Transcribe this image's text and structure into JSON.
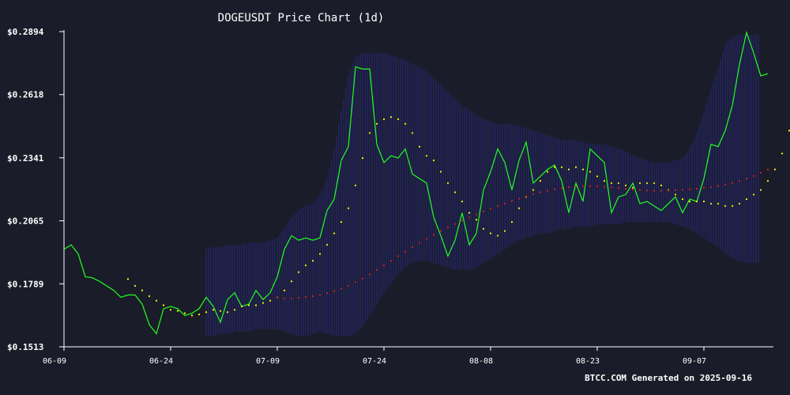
{
  "chart_data": {
    "type": "line",
    "title": "DOGEUSDT Price Chart (1d)",
    "footer": "BTCC.COM Generated on 2025-09-16",
    "xlabel": "",
    "ylabel": "",
    "ylim": [
      0.1513,
      0.2894
    ],
    "y_ticks": [
      "$0.1513",
      "$0.1789",
      "$0.2065",
      "$0.2341",
      "$0.2618",
      "$0.2894"
    ],
    "y_tick_values": [
      0.1513,
      0.1789,
      0.2065,
      0.2341,
      0.2618,
      0.2894
    ],
    "x_ticks": [
      "06-09",
      "06-24",
      "07-09",
      "07-24",
      "08-08",
      "08-23",
      "09-07"
    ],
    "x_tick_days": [
      0,
      15,
      30,
      45,
      60,
      75,
      90
    ],
    "grid": false,
    "colors": {
      "background": "#1a1d29",
      "price": "#22ff22",
      "ma_short": "#ffff00",
      "ma_long": "#dd2222",
      "band": "#2a2a8a",
      "axis": "#ffffff"
    },
    "series": [
      {
        "key": "price",
        "style": "line",
        "start_day": 0,
        "values": [
          0.194,
          0.196,
          0.192,
          0.182,
          0.1815,
          0.18,
          0.178,
          0.176,
          0.173,
          0.174,
          0.174,
          0.17,
          0.161,
          0.157,
          0.168,
          0.169,
          0.168,
          0.165,
          0.166,
          0.168,
          0.173,
          0.169,
          0.162,
          0.172,
          0.175,
          0.169,
          0.17,
          0.176,
          0.172,
          0.175,
          0.182,
          0.194,
          0.2,
          0.198,
          0.199,
          0.198,
          0.199,
          0.211,
          0.216,
          0.233,
          0.239,
          0.274,
          0.273,
          0.273,
          0.24,
          0.232,
          0.235,
          0.234,
          0.238,
          0.227,
          0.225,
          0.223,
          0.208,
          0.2,
          0.191,
          0.198,
          0.21,
          0.196,
          0.201,
          0.22,
          0.228,
          0.238,
          0.232,
          0.22,
          0.233,
          0.241,
          0.223,
          0.226,
          0.229,
          0.231,
          0.224,
          0.21,
          0.223,
          0.215,
          0.238,
          0.235,
          0.232,
          0.21,
          0.217,
          0.218,
          0.223,
          0.214,
          0.215,
          0.213,
          0.211,
          0.214,
          0.217,
          0.21,
          0.216,
          0.215,
          0.225,
          0.24,
          0.239,
          0.246,
          0.257,
          0.275,
          0.289,
          0.28,
          0.27,
          0.271
        ]
      },
      {
        "key": "ma_short",
        "style": "dots",
        "start_day": 9,
        "values": [
          0.181,
          0.178,
          0.176,
          0.1735,
          0.1715,
          0.1695,
          0.1675,
          0.167,
          0.166,
          0.165,
          0.1655,
          0.1665,
          0.1675,
          0.167,
          0.1665,
          0.1675,
          0.169,
          0.1695,
          0.1695,
          0.1705,
          0.1715,
          0.173,
          0.176,
          0.18,
          0.184,
          0.187,
          0.189,
          0.192,
          0.196,
          0.201,
          0.206,
          0.212,
          0.222,
          0.234,
          0.245,
          0.249,
          0.251,
          0.252,
          0.251,
          0.249,
          0.245,
          0.239,
          0.235,
          0.233,
          0.228,
          0.223,
          0.219,
          0.215,
          0.21,
          0.207,
          0.203,
          0.201,
          0.2,
          0.202,
          0.206,
          0.212,
          0.217,
          0.22,
          0.224,
          0.228,
          0.23,
          0.23,
          0.229,
          0.23,
          0.229,
          0.228,
          0.226,
          0.224,
          0.223,
          0.223,
          0.222,
          0.221,
          0.223,
          0.223,
          0.223,
          0.222,
          0.22,
          0.218,
          0.216,
          0.215,
          0.215,
          0.215,
          0.214,
          0.214,
          0.213,
          0.213,
          0.214,
          0.216,
          0.218,
          0.22,
          0.224,
          0.229,
          0.236,
          0.246,
          0.255,
          0.264,
          0.268,
          0.271
        ]
      },
      {
        "key": "ma_long",
        "style": "dots",
        "start_day": 30,
        "values": [
          0.173,
          0.1725,
          0.1725,
          0.1728,
          0.1731,
          0.1735,
          0.174,
          0.1748,
          0.1757,
          0.1768,
          0.1781,
          0.1796,
          0.1812,
          0.183,
          0.185,
          0.187,
          0.189,
          0.191,
          0.193,
          0.195,
          0.1968,
          0.1986,
          0.2003,
          0.202,
          0.2036,
          0.2051,
          0.2066,
          0.208,
          0.2093,
          0.2106,
          0.2118,
          0.213,
          0.2141,
          0.2152,
          0.2162,
          0.2172,
          0.2182,
          0.219,
          0.2197,
          0.2203,
          0.2208,
          0.2212,
          0.2215,
          0.2217,
          0.2217,
          0.2216,
          0.2214,
          0.2211,
          0.2208,
          0.2205,
          0.2202,
          0.22,
          0.2198,
          0.2197,
          0.2197,
          0.2198,
          0.2199,
          0.2201,
          0.2203,
          0.2206,
          0.2209,
          0.2213,
          0.2218,
          0.2224,
          0.2231,
          0.224,
          0.225,
          0.2262,
          0.2275,
          0.229
        ]
      },
      {
        "key": "bollinger_band",
        "style": "band",
        "start_day": 20,
        "upper": [
          0.194,
          0.195,
          0.195,
          0.196,
          0.196,
          0.196,
          0.197,
          0.197,
          0.197,
          0.198,
          0.199,
          0.203,
          0.208,
          0.211,
          0.213,
          0.214,
          0.218,
          0.225,
          0.238,
          0.255,
          0.27,
          0.278,
          0.28,
          0.28,
          0.28,
          0.28,
          0.279,
          0.278,
          0.277,
          0.275,
          0.274,
          0.272,
          0.269,
          0.266,
          0.263,
          0.26,
          0.257,
          0.255,
          0.253,
          0.251,
          0.25,
          0.249,
          0.249,
          0.249,
          0.248,
          0.247,
          0.246,
          0.245,
          0.244,
          0.243,
          0.242,
          0.242,
          0.242,
          0.241,
          0.24,
          0.24,
          0.24,
          0.239,
          0.238,
          0.237,
          0.235,
          0.234,
          0.233,
          0.232,
          0.232,
          0.232,
          0.233,
          0.234,
          0.238,
          0.245,
          0.255,
          0.264,
          0.274,
          0.284,
          0.287,
          0.288,
          0.288,
          0.288,
          0.288
        ],
        "lower": [
          0.156,
          0.156,
          0.157,
          0.157,
          0.158,
          0.158,
          0.158,
          0.159,
          0.159,
          0.159,
          0.159,
          0.158,
          0.157,
          0.156,
          0.156,
          0.157,
          0.158,
          0.157,
          0.156,
          0.156,
          0.156,
          0.157,
          0.16,
          0.165,
          0.17,
          0.175,
          0.179,
          0.183,
          0.186,
          0.188,
          0.189,
          0.189,
          0.188,
          0.187,
          0.186,
          0.185,
          0.185,
          0.185,
          0.186,
          0.188,
          0.19,
          0.192,
          0.194,
          0.196,
          0.198,
          0.199,
          0.2,
          0.201,
          0.201,
          0.202,
          0.203,
          0.203,
          0.204,
          0.204,
          0.204,
          0.205,
          0.205,
          0.205,
          0.205,
          0.206,
          0.206,
          0.206,
          0.206,
          0.206,
          0.206,
          0.206,
          0.205,
          0.204,
          0.203,
          0.201,
          0.199,
          0.197,
          0.195,
          0.192,
          0.19,
          0.189,
          0.188,
          0.188,
          0.188
        ]
      }
    ]
  }
}
